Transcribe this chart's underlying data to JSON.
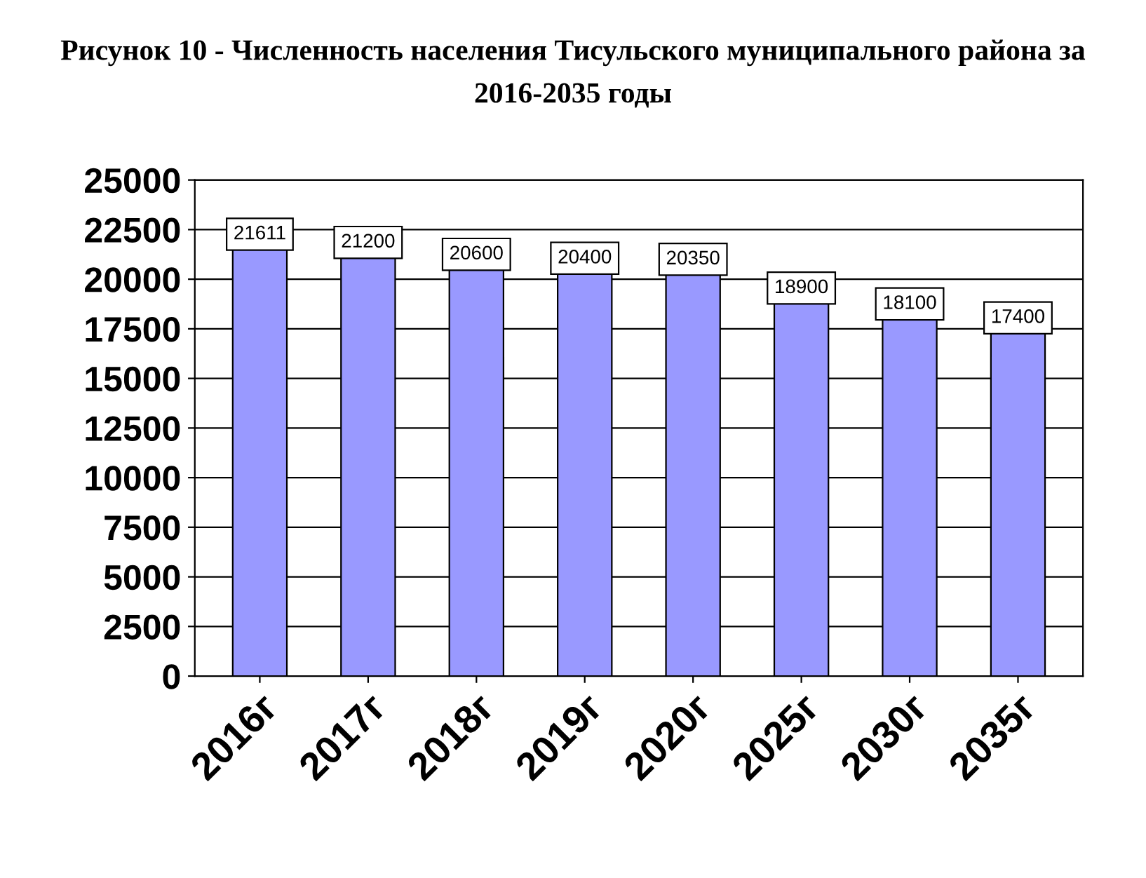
{
  "chart_data": {
    "type": "bar",
    "title": "Рисунок 10 - Численность населения Тисульского муниципального района за 2016-2035 годы",
    "categories": [
      "2016г",
      "2017г",
      "2018г",
      "2019г",
      "2020г",
      "2025г",
      "2030г",
      "2035г"
    ],
    "values": [
      21611,
      21200,
      20600,
      20400,
      20350,
      18900,
      18100,
      17400
    ],
    "color": "#9999ff",
    "data_labels": true,
    "ylim": [
      0,
      25000
    ],
    "yticks": [
      0,
      2500,
      5000,
      7500,
      10000,
      12500,
      15000,
      17500,
      20000,
      22500,
      25000
    ],
    "grid": "y"
  }
}
